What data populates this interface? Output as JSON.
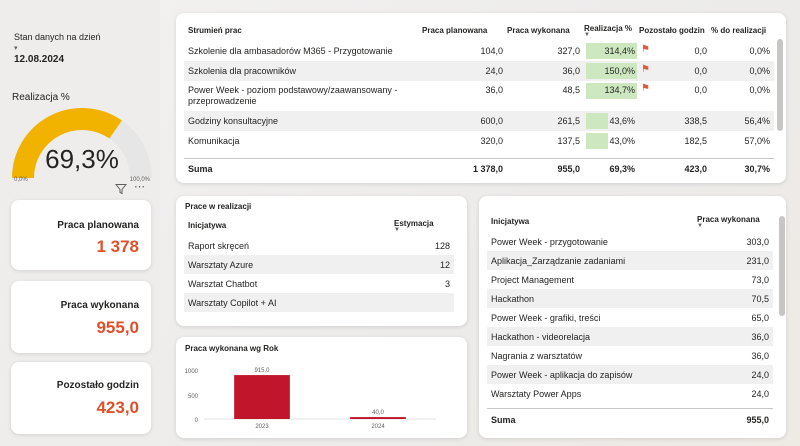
{
  "sidebar": {
    "date_label": "Stan danych na dzień",
    "date_value": "12.08.2024",
    "gauge": {
      "title": "Realizacja %",
      "value_text": "69,3%",
      "fraction": 0.693,
      "min_label": "0,0%",
      "max_label": "100,0%",
      "fill_color": "#f2b300",
      "track_color": "#e6e6e6"
    },
    "icons": {
      "filter": "filter-icon",
      "more": "more-options-icon"
    },
    "kpis": [
      {
        "label": "Praca planowana",
        "value": "1 378"
      },
      {
        "label": "Praca wykonana",
        "value": "955,0"
      },
      {
        "label": "Pozostało godzin",
        "value": "423,0"
      }
    ]
  },
  "streams_table": {
    "headers": [
      "Strumień prac",
      "Praca planowana",
      "Praca wykonana",
      "Realizacja %",
      "Pozostało godzin",
      "% do realizacji"
    ],
    "rows": [
      {
        "name": "Szkolenie dla ambasadorów M365 - Przygotowanie",
        "planned": "104,0",
        "done": "327,0",
        "pct": "314,4%",
        "pct_value": 3.144,
        "flag": true,
        "remaining": "0,0",
        "to_do": "0,0%"
      },
      {
        "name": "Szkolenia dla pracowników",
        "planned": "24,0",
        "done": "36,0",
        "pct": "150,0%",
        "pct_value": 1.5,
        "flag": true,
        "remaining": "0,0",
        "to_do": "0,0%"
      },
      {
        "name": "Power Week - poziom podstawowy/zaawansowany - przeprowadzenie",
        "planned": "36,0",
        "done": "48,5",
        "pct": "134,7%",
        "pct_value": 1.347,
        "flag": true,
        "remaining": "0,0",
        "to_do": "0,0%"
      },
      {
        "name": "Godziny konsultacyjne",
        "planned": "600,0",
        "done": "261,5",
        "pct": "43,6%",
        "pct_value": 0.436,
        "flag": false,
        "remaining": "338,5",
        "to_do": "56,4%"
      },
      {
        "name": "Komunikacja",
        "planned": "320,0",
        "done": "137,5",
        "pct": "43,0%",
        "pct_value": 0.43,
        "flag": false,
        "remaining": "182,5",
        "to_do": "57,0%"
      }
    ],
    "total": {
      "label": "Suma",
      "planned": "1 378,0",
      "done": "955,0",
      "pct": "69,3%",
      "remaining": "423,0",
      "to_do": "30,7%"
    },
    "flag_color": "#e05a3b",
    "bar_color": "#cde8c0"
  },
  "in_progress": {
    "title": "Prace w realizacji",
    "headers": [
      "Inicjatywa",
      "Estymacja"
    ],
    "rows": [
      {
        "name": "Raport skręceń",
        "value": "128"
      },
      {
        "name": "Warsztaty Azure",
        "value": "12"
      },
      {
        "name": "Warsztat Chatbot",
        "value": "3"
      },
      {
        "name": "Warsztaty Copilot + AI",
        "value": ""
      }
    ]
  },
  "year_chart": {
    "title": "Praca wykonana wg Rok",
    "color": "#c0152a",
    "y_ticks": [
      "1000",
      "500",
      "0"
    ]
  },
  "chart_data": {
    "type": "bar",
    "title": "Praca wykonana wg Rok",
    "categories": [
      "2023",
      "2024"
    ],
    "values": [
      915.0,
      40.0
    ],
    "value_labels": [
      "915,0",
      "40,0"
    ],
    "ylim": [
      0,
      1000
    ]
  },
  "initiatives": {
    "headers": [
      "Inicjatywa",
      "Praca wykonana"
    ],
    "rows": [
      {
        "name": "Power Week - przygotowanie",
        "value": "303,0"
      },
      {
        "name": "Aplikacja_Zarządzanie zadaniami",
        "value": "231,0"
      },
      {
        "name": "Project Management",
        "value": "73,0"
      },
      {
        "name": "Hackathon",
        "value": "70,5"
      },
      {
        "name": "Power Week - grafiki, treści",
        "value": "65,0"
      },
      {
        "name": "Hackathon - videorelacja",
        "value": "36,0"
      },
      {
        "name": "Nagrania z warsztatów",
        "value": "36,0"
      },
      {
        "name": "Power Week - aplikacja do zapisów",
        "value": "24,0"
      },
      {
        "name": "Warsztaty Power Apps",
        "value": "24,0"
      }
    ],
    "total": {
      "label": "Suma",
      "value": "955,0"
    }
  }
}
